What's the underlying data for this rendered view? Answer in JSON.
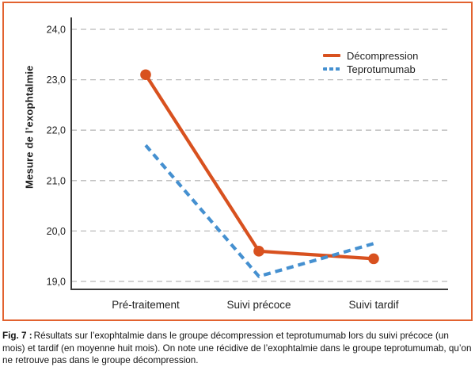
{
  "figure": {
    "frame_border_color": "#E2622F",
    "caption": {
      "label": "Fig. 7 :",
      "text": "Résultats sur l’exophtalmie dans le groupe décompression et teprotumumab lors du suivi précoce (un mois) et tardif (en moyenne huit mois). On note une récidive de l’exophtalmie dans le groupe teprotumumab, qu’on ne retrouve pas dans le groupe décompression."
    }
  },
  "chart_data": {
    "type": "line",
    "categories": [
      "Pré-traitement",
      "Suivi précoce",
      "Suivi tardif"
    ],
    "series": [
      {
        "name": "Décompression",
        "values": [
          23.1,
          19.6,
          19.45
        ],
        "color": "#D8511F",
        "style": "solid",
        "marker": "circle"
      },
      {
        "name": "Teprotumumab",
        "values": [
          21.7,
          19.1,
          19.75
        ],
        "color": "#4590D0",
        "style": "dashed",
        "marker": "none"
      }
    ],
    "title": "",
    "xlabel": "",
    "ylabel": "Mesure de l’exophtalmie",
    "yticks": [
      24.0,
      23.0,
      22.0,
      21.0,
      20.0,
      19.0
    ],
    "ytick_labels": [
      "24,0",
      "23,0",
      "22,0",
      "21,0",
      "20,0",
      "19,0"
    ],
    "ylim": [
      18.85,
      24.25
    ],
    "grid": "horizontal-dashed",
    "grid_color": "#B9B9B9",
    "axis_color": "#3A3A3A",
    "legend_position": "upper-right"
  }
}
